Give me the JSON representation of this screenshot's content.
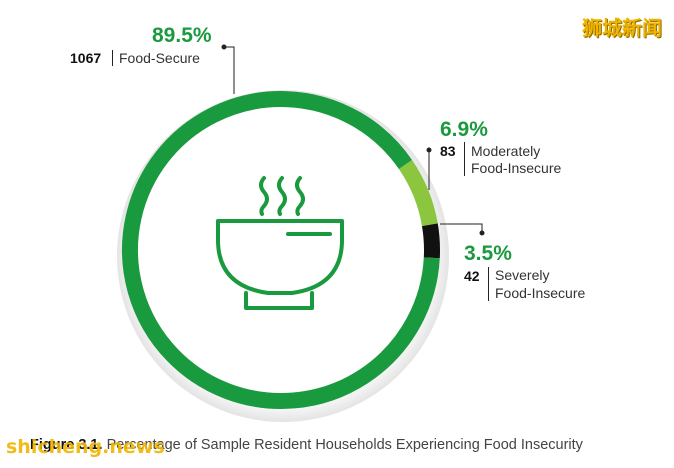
{
  "chart_data": {
    "type": "pie",
    "caption_bold": "Figure 3.1.",
    "caption_text": "Percentage of Sample Resident Households Experiencing Food Insecurity",
    "slices": [
      {
        "count": "1067",
        "label": "Food-Secure",
        "percent": 89.5,
        "percent_label": "89.5%",
        "color": "#1a9a3f"
      },
      {
        "count": "83",
        "label": "Moderately Food-Insecure",
        "percent": 6.9,
        "percent_label": "6.9%",
        "color": "#8cc63f"
      },
      {
        "count": "42",
        "label": "Severely Food-Insecure",
        "percent": 3.5,
        "percent_label": "3.5%",
        "color": "#111111"
      }
    ]
  },
  "labels": {
    "secure": {
      "percent": "89.5%",
      "count": "1067",
      "text": "Food-Secure"
    },
    "moderate": {
      "percent": "6.9%",
      "count": "83",
      "line1": "Moderately",
      "line2": "Food-Insecure"
    },
    "severe": {
      "percent": "3.5%",
      "count": "42",
      "line1": "Severely",
      "line2": "Food-Insecure"
    }
  },
  "center_icon": "soup-bowl-icon",
  "colors": {
    "accent": "#1a9a3f",
    "light": "#8cc63f",
    "dark": "#111111"
  },
  "watermark_cn": "狮城新闻",
  "watermark_en": "shicheng.news"
}
